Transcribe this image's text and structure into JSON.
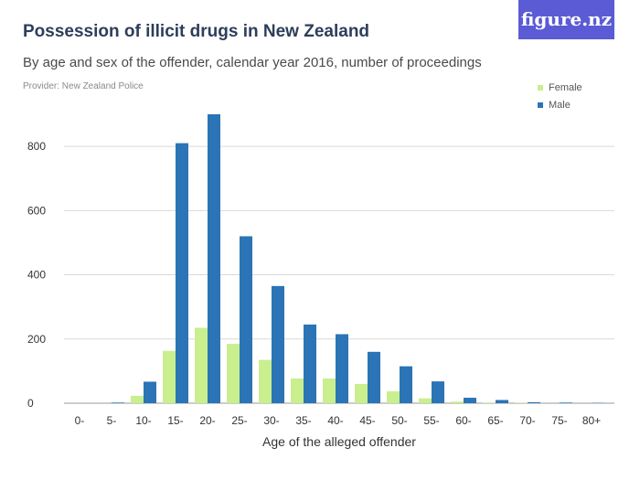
{
  "header": {
    "title": "Possession of illicit drugs in New Zealand",
    "subtitle": "By age and sex of the offender, calendar year 2016, number of proceedings",
    "provider": "Provider: New Zealand Police",
    "logo": "figure.nz"
  },
  "colors": {
    "female": "#c9ef8f",
    "male": "#2b74b5",
    "logo_bg": "#5b5bd6",
    "grid": "#d9d9d9",
    "baseline": "#999999"
  },
  "chart_data": {
    "type": "bar",
    "categories": [
      "0-",
      "5-",
      "10-",
      "15-",
      "20-",
      "25-",
      "30-",
      "35-",
      "40-",
      "45-",
      "50-",
      "55-",
      "60-",
      "65-",
      "70-",
      "75-",
      "80+"
    ],
    "series": [
      {
        "name": "Female",
        "values": [
          0,
          0,
          23,
          163,
          235,
          185,
          135,
          77,
          77,
          60,
          37,
          15,
          5,
          2,
          1,
          0,
          0
        ]
      },
      {
        "name": "Male",
        "values": [
          0,
          2,
          67,
          810,
          900,
          520,
          365,
          245,
          215,
          160,
          115,
          68,
          17,
          10,
          3,
          2,
          1
        ]
      }
    ],
    "title": "Possession of illicit drugs in New Zealand",
    "subtitle": "By age and sex of the offender, calendar year 2016, number of proceedings",
    "xlabel": "Age of the alleged offender",
    "ylabel": "",
    "ylim": [
      0,
      900
    ],
    "yticks": [
      0,
      200,
      400,
      600,
      800
    ],
    "grid": true,
    "legend_position": "top-right"
  }
}
